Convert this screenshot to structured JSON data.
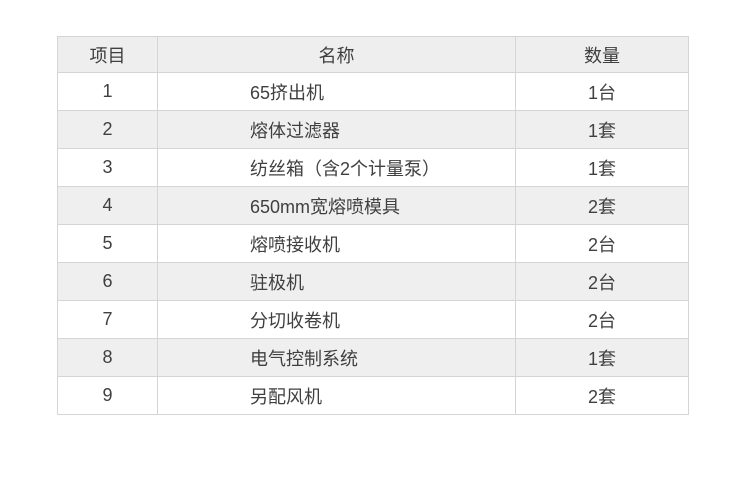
{
  "table": {
    "headers": {
      "item": "项目",
      "name": "名称",
      "qty": "数量"
    },
    "rows": [
      {
        "item": "1",
        "name": "65挤出机",
        "qty": "1台"
      },
      {
        "item": "2",
        "name": "熔体过滤器",
        "qty": "1套"
      },
      {
        "item": "3",
        "name": "纺丝箱（含2个计量泵）",
        "qty": "1套"
      },
      {
        "item": "4",
        "name": "650mm宽熔喷模具",
        "qty": "2套"
      },
      {
        "item": "5",
        "name": "熔喷接收机",
        "qty": "2台"
      },
      {
        "item": "6",
        "name": "驻极机",
        "qty": "2台"
      },
      {
        "item": "7",
        "name": "分切收卷机",
        "qty": "2台"
      },
      {
        "item": "8",
        "name": "电气控制系统",
        "qty": "1套"
      },
      {
        "item": "9",
        "name": "另配风机",
        "qty": "2套"
      }
    ]
  },
  "colors": {
    "page_bg": "#ffffff",
    "header_bg": "#eeeeee",
    "stripe_bg": "#efefef",
    "border": "#d5d5d5",
    "text": "#404040"
  }
}
